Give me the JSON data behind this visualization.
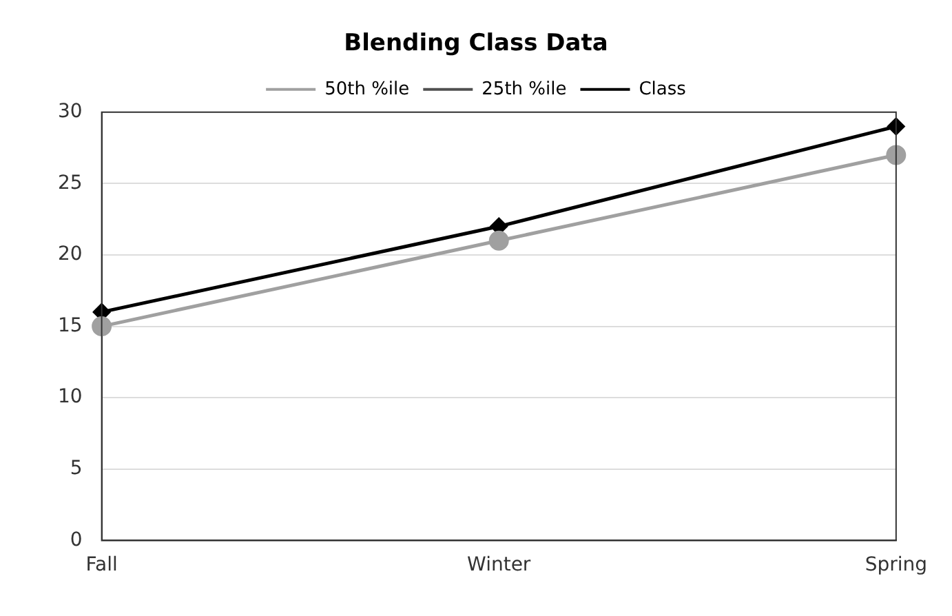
{
  "chart_data": {
    "type": "line",
    "title": "Blending Class Data",
    "categories": [
      "Fall",
      "Winter",
      "Spring"
    ],
    "series": [
      {
        "name": "50th %ile",
        "color": "#a0a0a0",
        "marker": "circle",
        "values": [
          15,
          21,
          27
        ]
      },
      {
        "name": "25th %ile",
        "color": "#505050",
        "marker": "square",
        "values": [
          null,
          null,
          null
        ]
      },
      {
        "name": "Class",
        "color": "#000000",
        "marker": "diamond",
        "values": [
          16,
          22,
          29
        ]
      }
    ],
    "ylim": [
      0,
      30
    ],
    "yticks": [
      0,
      5,
      10,
      15,
      20,
      25,
      30
    ],
    "grid": "y",
    "legend": "top"
  }
}
